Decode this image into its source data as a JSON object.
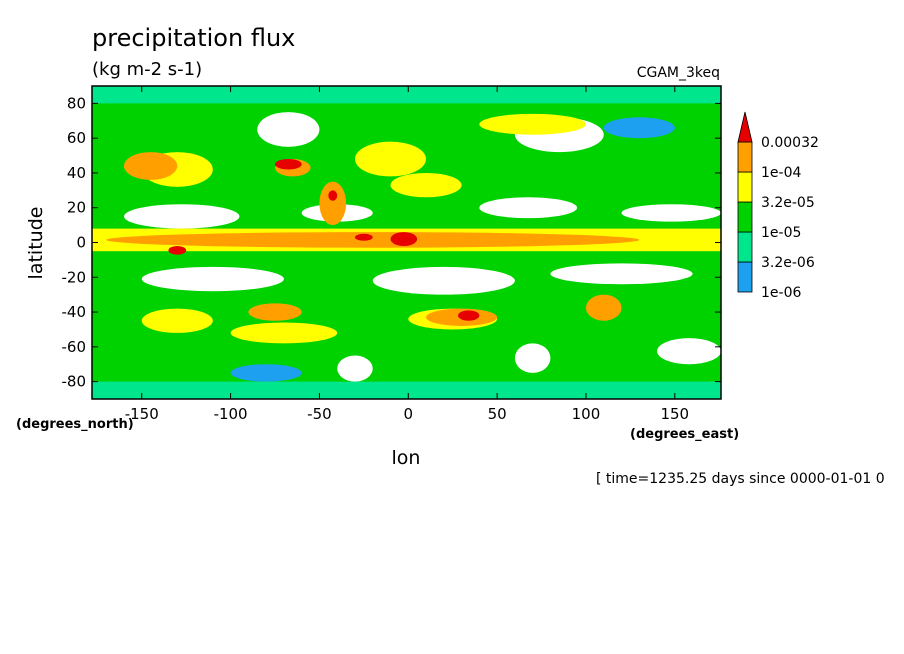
{
  "chart_data": {
    "type": "heatmap",
    "title": "precipitation flux",
    "subtitle": "(kg m-2 s-1)",
    "run_label": "CGAM_3keq",
    "xlabel": "lon",
    "ylabel": "latitude",
    "x_unit_label": "(degrees_east)",
    "y_unit_label": "(degrees_north)",
    "time_label": "[ time=1235.25 days since 0000-01-01 0",
    "xlim": [
      -178,
      176
    ],
    "ylim": [
      -90,
      90
    ],
    "x_ticks": [
      -150,
      -100,
      -50,
      0,
      50,
      100,
      150
    ],
    "x_tick_labels": [
      "-150",
      "-100",
      "-50",
      "0",
      "50",
      "100",
      "150"
    ],
    "y_ticks": [
      80,
      60,
      40,
      20,
      0,
      -20,
      -40,
      -60,
      -80
    ],
    "y_tick_labels": [
      "80",
      "60",
      "40",
      "20",
      "0",
      "-20",
      "-40",
      "-60",
      "-80"
    ],
    "colorbar": {
      "labels": [
        "0.00032",
        "1e-04",
        "3.2e-05",
        "1e-05",
        "3.2e-06",
        "1e-06"
      ],
      "bands": [
        {
          "range": "<1e-06",
          "color": "#ffffff"
        },
        {
          "range": "1e-06 – 3.2e-06",
          "color": "#1ea0f0"
        },
        {
          "range": "3.2e-06 – 1e-05",
          "color": "#00e68c"
        },
        {
          "range": "1e-05 – 3.2e-05",
          "color": "#00d200"
        },
        {
          "range": "3.2e-05 – 1e-04",
          "color": "#ffff00"
        },
        {
          "range": "1e-04 – 0.00032",
          "color": "#ffa000"
        },
        {
          "range": ">0.00032",
          "color": "#e60000"
        }
      ]
    },
    "regions": [
      {
        "level": 0,
        "band": "<1e-06",
        "lon": [
          -160,
          -95
        ],
        "lat": [
          8,
          22
        ],
        "shape": "ellipse"
      },
      {
        "level": 0,
        "band": "<1e-06",
        "lon": [
          -60,
          -20
        ],
        "lat": [
          12,
          22
        ],
        "shape": "ellipse"
      },
      {
        "level": 0,
        "band": "<1e-06",
        "lon": [
          40,
          95
        ],
        "lat": [
          14,
          26
        ],
        "shape": "ellipse"
      },
      {
        "level": 0,
        "band": "<1e-06",
        "lon": [
          120,
          176
        ],
        "lat": [
          12,
          22
        ],
        "shape": "ellipse"
      },
      {
        "level": 0,
        "band": "<1e-06",
        "lon": [
          -150,
          -70
        ],
        "lat": [
          -28,
          -14
        ],
        "shape": "ellipse"
      },
      {
        "level": 0,
        "band": "<1e-06",
        "lon": [
          -20,
          60
        ],
        "lat": [
          -30,
          -14
        ],
        "shape": "ellipse"
      },
      {
        "level": 0,
        "band": "<1e-06",
        "lon": [
          80,
          160
        ],
        "lat": [
          -24,
          -12
        ],
        "shape": "ellipse"
      },
      {
        "level": 0,
        "band": "<1e-06",
        "lon": [
          -85,
          -50
        ],
        "lat": [
          55,
          75
        ],
        "shape": "ellipse"
      },
      {
        "level": 0,
        "band": "<1e-06",
        "lon": [
          60,
          110
        ],
        "lat": [
          52,
          72
        ],
        "shape": "ellipse"
      },
      {
        "level": 0,
        "band": "<1e-06",
        "lon": [
          140,
          176
        ],
        "lat": [
          -70,
          -55
        ],
        "shape": "ellipse"
      },
      {
        "level": 0,
        "band": "<1e-06",
        "lon": [
          60,
          80
        ],
        "lat": [
          -75,
          -58
        ],
        "shape": "ellipse"
      },
      {
        "level": 0,
        "band": "<1e-06",
        "lon": [
          -40,
          -20
        ],
        "lat": [
          -80,
          -65
        ],
        "shape": "ellipse"
      },
      {
        "level": 1,
        "band": "1e-06 – 3.2e-06",
        "lon": [
          -100,
          -60
        ],
        "lat": [
          -80,
          -70
        ],
        "shape": "ellipse"
      },
      {
        "level": 1,
        "band": "1e-06 – 3.2e-06",
        "lon": [
          110,
          150
        ],
        "lat": [
          60,
          72
        ],
        "shape": "ellipse"
      },
      {
        "level": 2,
        "band": "3.2e-06 – 1e-05",
        "lon": [
          -178,
          176
        ],
        "lat": [
          -90,
          -80
        ],
        "shape": "rect"
      },
      {
        "level": 2,
        "band": "3.2e-06 – 1e-05",
        "lon": [
          -178,
          176
        ],
        "lat": [
          80,
          90
        ],
        "shape": "rect"
      },
      {
        "level": 4,
        "band": "3.2e-05 – 1e-04",
        "lon": [
          -178,
          176
        ],
        "lat": [
          -5,
          8
        ],
        "shape": "rect"
      },
      {
        "level": 4,
        "band": "3.2e-05 – 1e-04",
        "lon": [
          -150,
          -110
        ],
        "lat": [
          32,
          52
        ],
        "shape": "ellipse"
      },
      {
        "level": 4,
        "band": "3.2e-05 – 1e-04",
        "lon": [
          -30,
          10
        ],
        "lat": [
          38,
          58
        ],
        "shape": "ellipse"
      },
      {
        "level": 4,
        "band": "3.2e-05 – 1e-04",
        "lon": [
          -10,
          30
        ],
        "lat": [
          26,
          40
        ],
        "shape": "ellipse"
      },
      {
        "level": 4,
        "band": "3.2e-05 – 1e-04",
        "lon": [
          40,
          100
        ],
        "lat": [
          62,
          74
        ],
        "shape": "ellipse"
      },
      {
        "level": 4,
        "band": "3.2e-05 – 1e-04",
        "lon": [
          -150,
          -110
        ],
        "lat": [
          -52,
          -38
        ],
        "shape": "ellipse"
      },
      {
        "level": 4,
        "band": "3.2e-05 – 1e-04",
        "lon": [
          0,
          50
        ],
        "lat": [
          -50,
          -38
        ],
        "shape": "ellipse"
      },
      {
        "level": 4,
        "band": "3.2e-05 – 1e-04",
        "lon": [
          -100,
          -40
        ],
        "lat": [
          -58,
          -46
        ],
        "shape": "ellipse"
      },
      {
        "level": 5,
        "band": "1e-04 – 0.00032",
        "lon": [
          -170,
          130
        ],
        "lat": [
          -3,
          6
        ],
        "shape": "ellipse"
      },
      {
        "level": 5,
        "band": "1e-04 – 0.00032",
        "lon": [
          -160,
          -130
        ],
        "lat": [
          36,
          52
        ],
        "shape": "ellipse"
      },
      {
        "level": 5,
        "band": "1e-04 – 0.00032",
        "lon": [
          -75,
          -55
        ],
        "lat": [
          38,
          48
        ],
        "shape": "ellipse"
      },
      {
        "level": 5,
        "band": "1e-04 – 0.00032",
        "lon": [
          -50,
          -35
        ],
        "lat": [
          10,
          35
        ],
        "shape": "ellipse"
      },
      {
        "level": 5,
        "band": "1e-04 – 0.00032",
        "lon": [
          -90,
          -60
        ],
        "lat": [
          -45,
          -35
        ],
        "shape": "ellipse"
      },
      {
        "level": 5,
        "band": "1e-04 – 0.00032",
        "lon": [
          10,
          50
        ],
        "lat": [
          -48,
          -38
        ],
        "shape": "ellipse"
      },
      {
        "level": 5,
        "band": "1e-04 – 0.00032",
        "lon": [
          100,
          120
        ],
        "lat": [
          -45,
          -30
        ],
        "shape": "ellipse"
      },
      {
        "level": 6,
        "band": ">0.00032",
        "lon": [
          -10,
          5
        ],
        "lat": [
          -2,
          6
        ],
        "shape": "ellipse"
      },
      {
        "level": 6,
        "band": ">0.00032",
        "lon": [
          -30,
          -20
        ],
        "lat": [
          1,
          5
        ],
        "shape": "ellipse"
      },
      {
        "level": 6,
        "band": ">0.00032",
        "lon": [
          -75,
          -60
        ],
        "lat": [
          42,
          48
        ],
        "shape": "ellipse"
      },
      {
        "level": 6,
        "band": ">0.00032",
        "lon": [
          -135,
          -125
        ],
        "lat": [
          -7,
          -2
        ],
        "shape": "ellipse"
      },
      {
        "level": 6,
        "band": ">0.00032",
        "lon": [
          28,
          40
        ],
        "lat": [
          -45,
          -39
        ],
        "shape": "ellipse"
      },
      {
        "level": 6,
        "band": ">0.00032",
        "lon": [
          -45,
          -40
        ],
        "lat": [
          24,
          30
        ],
        "shape": "ellipse"
      }
    ]
  }
}
